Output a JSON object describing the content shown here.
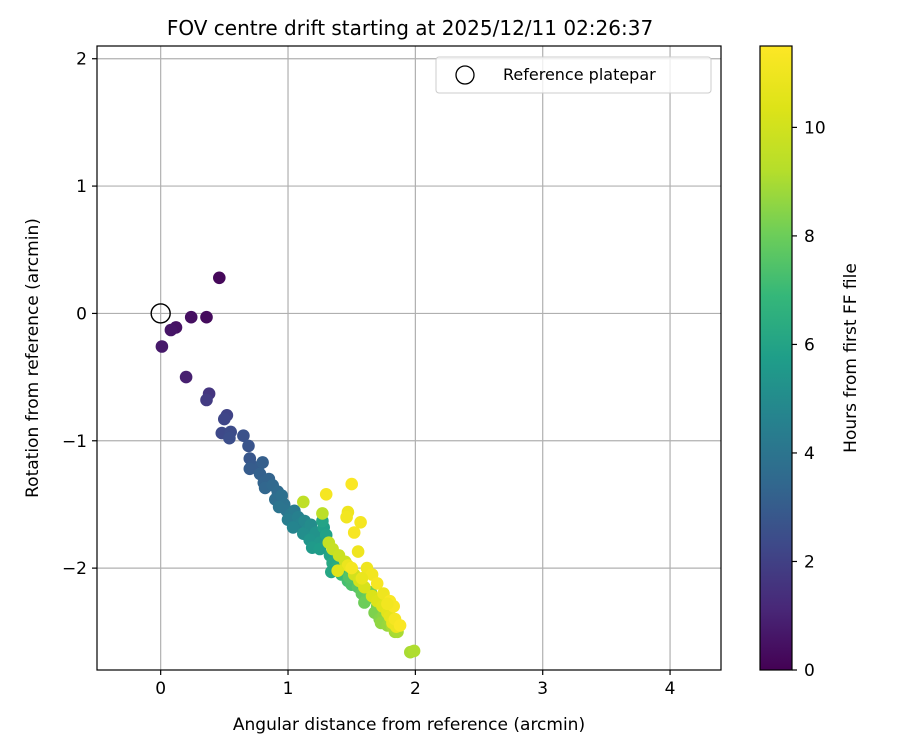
{
  "chart_data": {
    "type": "scatter",
    "title": "FOV centre drift starting at 2025/12/11 02:26:37",
    "xlabel": "Angular distance from reference (arcmin)",
    "ylabel": "Rotation from reference (arcmin)",
    "xlim": [
      -0.5,
      4.4
    ],
    "ylim": [
      -2.8,
      2.1
    ],
    "xticks": [
      0,
      1,
      2,
      3,
      4
    ],
    "yticks": [
      2,
      1,
      0,
      -1,
      -2
    ],
    "xtick_labels": [
      "0",
      "1",
      "2",
      "3",
      "4"
    ],
    "ytick_labels": [
      "2",
      "1",
      "0",
      "−1",
      "−2"
    ],
    "grid": true,
    "legend": {
      "label": "Reference platepar",
      "location": "upper right"
    },
    "reference_point": {
      "x": 0,
      "y": 0
    },
    "colorbar": {
      "label": "Hours from first FF file",
      "colormap": "viridis",
      "range": [
        0,
        11.5
      ],
      "ticks": [
        0,
        2,
        4,
        6,
        8,
        10
      ],
      "tick_labels": [
        "0",
        "2",
        "4",
        "6",
        "8",
        "10"
      ]
    },
    "points": [
      [
        0.46,
        0.28,
        0.2
      ],
      [
        0.36,
        -0.03,
        0.3
      ],
      [
        0.24,
        -0.03,
        0.4
      ],
      [
        0.12,
        -0.11,
        0.5
      ],
      [
        0.08,
        -0.13,
        0.6
      ],
      [
        0.01,
        -0.26,
        0.7
      ],
      [
        0.2,
        -0.5,
        0.9
      ],
      [
        0.38,
        -0.63,
        1.6
      ],
      [
        0.36,
        -0.68,
        1.8
      ],
      [
        0.52,
        -0.8,
        2.1
      ],
      [
        0.5,
        -0.83,
        2.2
      ],
      [
        0.48,
        -0.94,
        2.3
      ],
      [
        0.55,
        -0.93,
        2.4
      ],
      [
        0.54,
        -0.98,
        2.5
      ],
      [
        0.65,
        -0.96,
        2.6
      ],
      [
        0.69,
        -1.04,
        2.7
      ],
      [
        0.7,
        -1.14,
        2.8
      ],
      [
        0.72,
        -1.2,
        2.9
      ],
      [
        0.76,
        -1.22,
        3.0
      ],
      [
        0.8,
        -1.17,
        3.1
      ],
      [
        0.7,
        -1.22,
        3.0
      ],
      [
        0.78,
        -1.26,
        3.2
      ],
      [
        0.81,
        -1.33,
        3.3
      ],
      [
        0.85,
        -1.3,
        3.3
      ],
      [
        0.82,
        -1.37,
        3.4
      ],
      [
        0.88,
        -1.35,
        3.5
      ],
      [
        0.92,
        -1.4,
        3.6
      ],
      [
        0.9,
        -1.46,
        3.7
      ],
      [
        0.95,
        -1.43,
        3.8
      ],
      [
        0.97,
        -1.5,
        3.9
      ],
      [
        0.99,
        -1.55,
        4.0
      ],
      [
        0.93,
        -1.52,
        4.0
      ],
      [
        1.02,
        -1.58,
        4.2
      ],
      [
        1.05,
        -1.55,
        4.3
      ],
      [
        1.0,
        -1.62,
        4.4
      ],
      [
        1.08,
        -1.6,
        4.5
      ],
      [
        1.1,
        -1.65,
        4.6
      ],
      [
        1.04,
        -1.68,
        4.7
      ],
      [
        1.13,
        -1.63,
        4.8
      ],
      [
        1.15,
        -1.7,
        4.9
      ],
      [
        1.18,
        -1.66,
        5.0
      ],
      [
        1.12,
        -1.73,
        5.1
      ],
      [
        1.2,
        -1.75,
        5.2
      ],
      [
        1.22,
        -1.72,
        5.3
      ],
      [
        1.17,
        -1.78,
        5.4
      ],
      [
        1.25,
        -1.8,
        5.5
      ],
      [
        1.19,
        -1.84,
        5.6
      ],
      [
        1.25,
        -1.85,
        5.7
      ],
      [
        1.28,
        -1.68,
        5.8
      ],
      [
        1.3,
        -1.74,
        5.9
      ],
      [
        1.27,
        -1.63,
        6.0
      ],
      [
        1.33,
        -1.9,
        6.0
      ],
      [
        1.35,
        -1.96,
        6.2
      ],
      [
        1.38,
        -2.0,
        6.4
      ],
      [
        1.34,
        -2.03,
        6.1
      ],
      [
        1.42,
        -2.05,
        7.0
      ],
      [
        1.47,
        -2.1,
        7.2
      ],
      [
        1.5,
        -2.13,
        7.4
      ],
      [
        1.48,
        -2.07,
        7.5
      ],
      [
        1.55,
        -2.15,
        7.6
      ],
      [
        1.58,
        -2.2,
        7.8
      ],
      [
        1.62,
        -2.24,
        7.9
      ],
      [
        1.6,
        -2.27,
        8.0
      ],
      [
        1.65,
        -2.19,
        8.1
      ],
      [
        1.7,
        -2.3,
        8.2
      ],
      [
        1.68,
        -2.35,
        8.3
      ],
      [
        1.72,
        -2.4,
        8.4
      ],
      [
        1.75,
        -2.37,
        8.5
      ],
      [
        1.73,
        -2.43,
        8.6
      ],
      [
        1.78,
        -2.45,
        8.7
      ],
      [
        1.8,
        -2.42,
        8.8
      ],
      [
        1.84,
        -2.5,
        8.9
      ],
      [
        1.82,
        -2.46,
        9.0
      ],
      [
        1.86,
        -2.5,
        9.0
      ],
      [
        1.96,
        -2.66,
        9.0
      ],
      [
        1.99,
        -2.65,
        9.1
      ],
      [
        1.12,
        -1.48,
        9.5
      ],
      [
        1.27,
        -1.57,
        9.4
      ],
      [
        1.32,
        -1.8,
        9.6
      ],
      [
        1.35,
        -1.85,
        9.7
      ],
      [
        1.4,
        -1.9,
        9.8
      ],
      [
        1.45,
        -1.95,
        9.9
      ],
      [
        1.52,
        -2.05,
        10.0
      ],
      [
        1.56,
        -2.1,
        10.1
      ],
      [
        1.6,
        -2.15,
        10.2
      ],
      [
        1.66,
        -2.22,
        10.3
      ],
      [
        1.7,
        -2.26,
        10.4
      ],
      [
        1.74,
        -2.3,
        10.5
      ],
      [
        1.78,
        -2.35,
        10.6
      ],
      [
        1.8,
        -2.38,
        10.7
      ],
      [
        1.82,
        -2.43,
        10.8
      ],
      [
        1.85,
        -2.46,
        10.9
      ],
      [
        1.3,
        -1.42,
        11.2
      ],
      [
        1.5,
        -1.34,
        11.4
      ],
      [
        1.47,
        -1.56,
        11.0
      ],
      [
        1.46,
        -1.6,
        11.1
      ],
      [
        1.52,
        -1.72,
        11.3
      ],
      [
        1.57,
        -1.64,
        11.2
      ],
      [
        1.55,
        -1.87,
        11.0
      ],
      [
        1.47,
        -1.98,
        10.9
      ],
      [
        1.5,
        -2.0,
        11.2
      ],
      [
        1.62,
        -2.0,
        11.0
      ],
      [
        1.66,
        -2.05,
        11.1
      ],
      [
        1.58,
        -2.08,
        10.8
      ],
      [
        1.7,
        -2.12,
        11.3
      ],
      [
        1.75,
        -2.2,
        11.0
      ],
      [
        1.8,
        -2.26,
        11.4
      ],
      [
        1.83,
        -2.3,
        11.3
      ],
      [
        1.84,
        -2.4,
        11.2
      ],
      [
        1.88,
        -2.45,
        11.4
      ],
      [
        1.78,
        -2.28,
        11.1
      ],
      [
        1.39,
        -2.02,
        10.5
      ]
    ]
  }
}
